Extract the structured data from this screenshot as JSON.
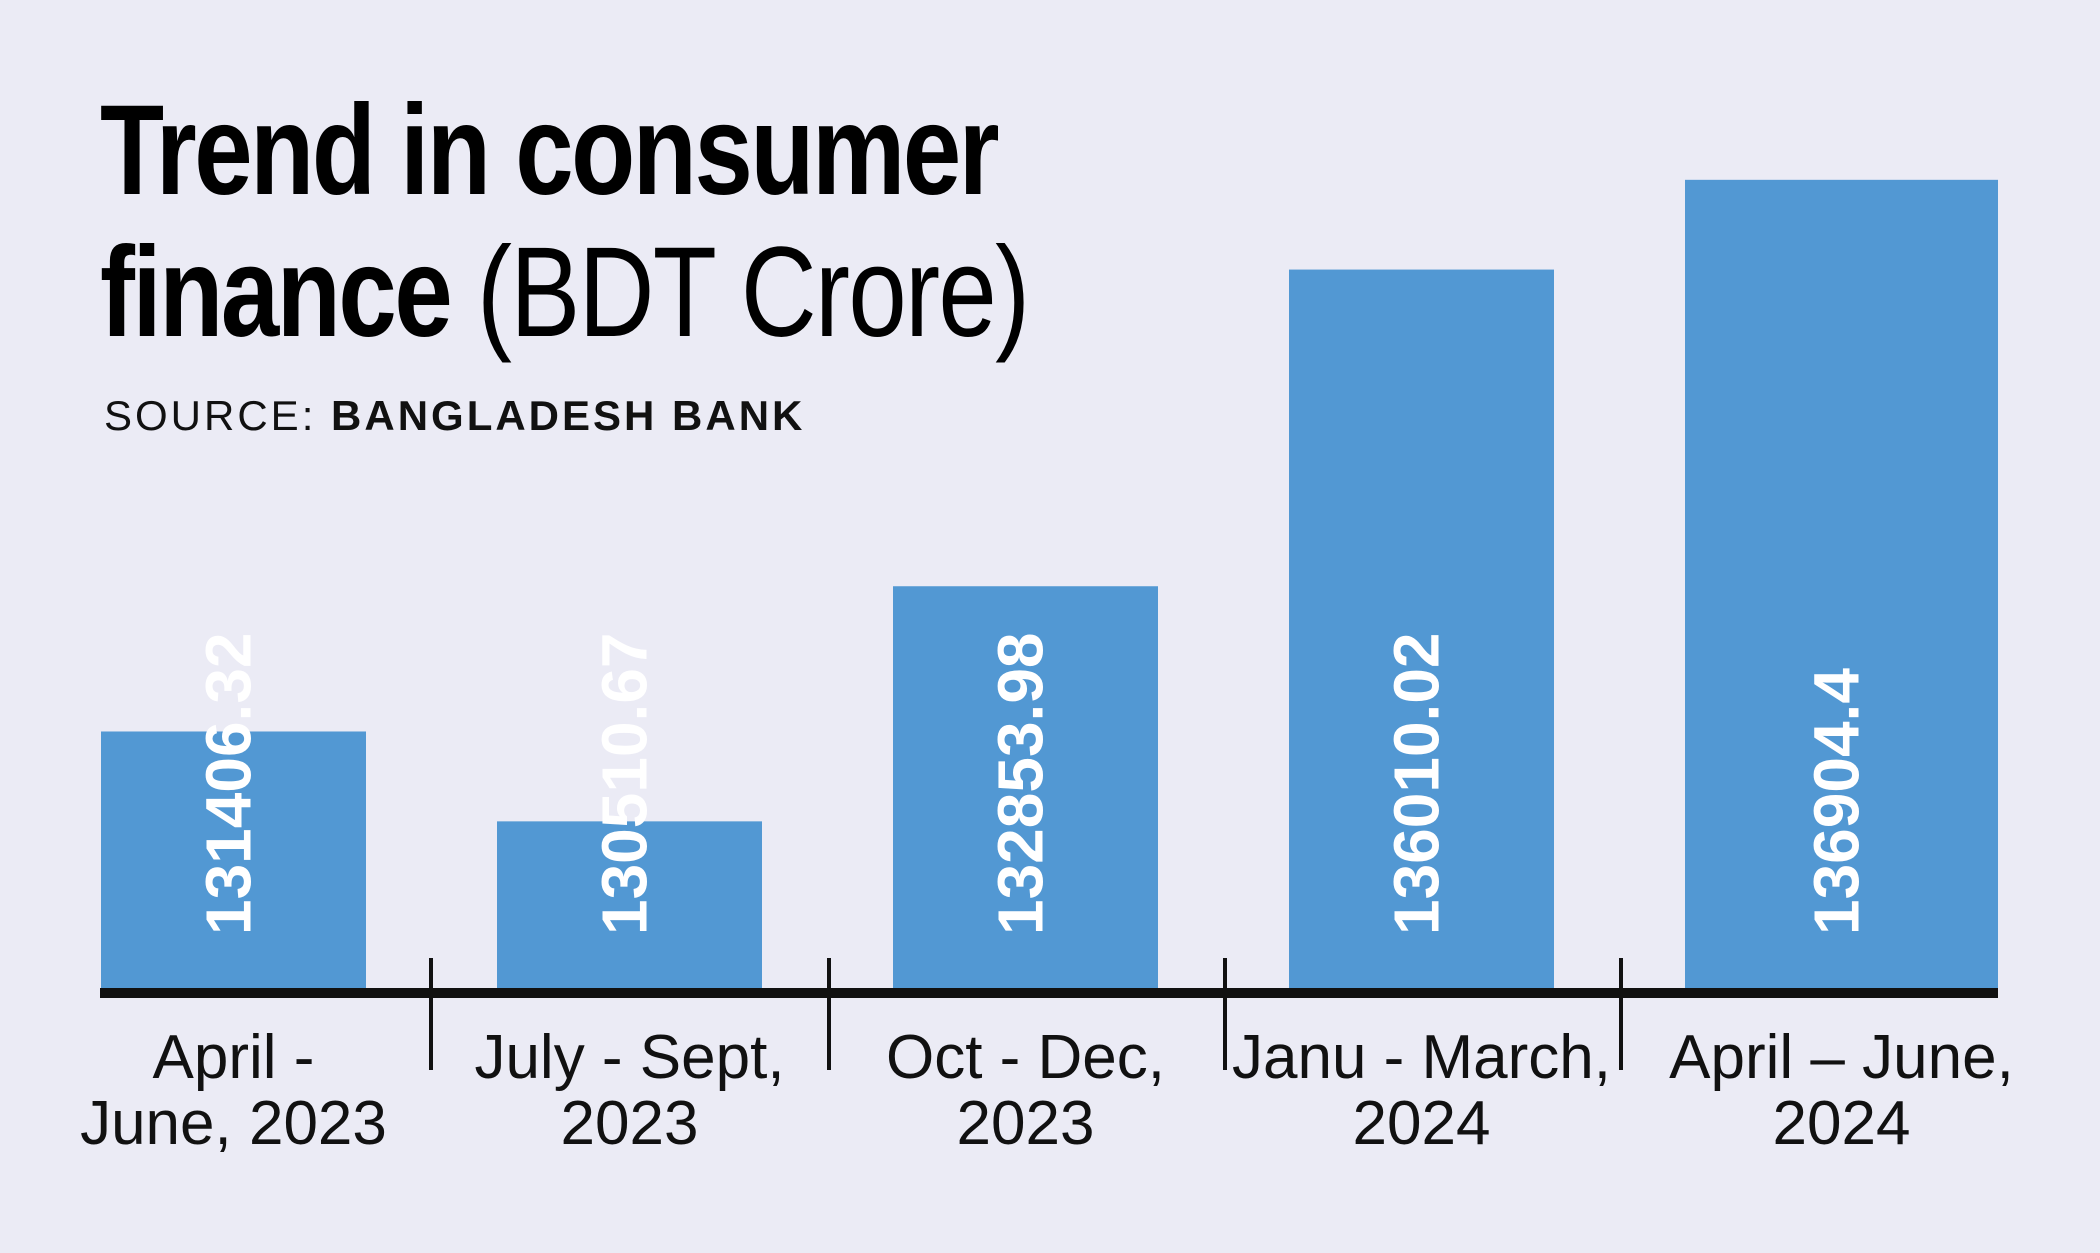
{
  "title": {
    "line1": "Trend in consumer",
    "line2_main": "finance",
    "line2_unit": "(BDT Crore)"
  },
  "source": {
    "label": "SOURCE:",
    "name": "BANGLADESH BANK"
  },
  "colors": {
    "background": "#ebebf5",
    "bar": "#5298d3",
    "axis": "#111111",
    "value_text": "#ffffff"
  },
  "chart_data": {
    "type": "bar",
    "title": "Trend in consumer finance (BDT Crore)",
    "categories": [
      [
        "April -",
        "June, 2023"
      ],
      [
        "July  - Sept,",
        "2023"
      ],
      [
        "Oct - Dec,",
        "2023"
      ],
      [
        "Janu - March,",
        "2024"
      ],
      [
        "April – June,",
        "2024"
      ]
    ],
    "values": [
      131406.32,
      130510.67,
      132853.98,
      136010.02,
      136904.4
    ],
    "value_labels": [
      "131406.32",
      "130510.67",
      "132853.98",
      "136010.02",
      "136904.4"
    ],
    "ylim": [
      128800,
      137700
    ],
    "grid": false,
    "legend": "none"
  }
}
